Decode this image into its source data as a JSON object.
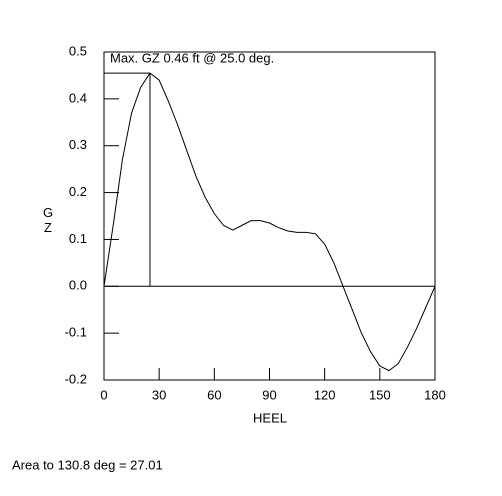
{
  "chart_data": {
    "type": "line",
    "annotation": "Max. GZ 0.46 ft @ 25.0 deg.",
    "footer": "Area to 130.8 deg = 27.01",
    "x_label": "HEEL",
    "y_label": "GZ",
    "x": [
      0,
      5,
      10,
      15,
      20,
      25,
      30,
      35,
      40,
      45,
      50,
      55,
      60,
      65,
      70,
      75,
      80,
      85,
      90,
      95,
      100,
      105,
      110,
      115,
      120,
      125,
      130,
      135,
      140,
      145,
      150,
      155,
      160,
      165,
      170,
      175,
      180
    ],
    "series": [
      {
        "color": "#000000",
        "values": [
          0,
          0.13,
          0.27,
          0.37,
          0.425,
          0.455,
          0.44,
          0.395,
          0.345,
          0.29,
          0.235,
          0.19,
          0.155,
          0.13,
          0.12,
          0.13,
          0.14,
          0.14,
          0.135,
          0.125,
          0.118,
          0.115,
          0.115,
          0.112,
          0.09,
          0.05,
          0.0,
          -0.05,
          -0.1,
          -0.14,
          -0.17,
          -0.18,
          -0.165,
          -0.13,
          -0.09,
          -0.045,
          0
        ]
      }
    ],
    "max_marker": {
      "x": 25,
      "y": 0.455
    },
    "xlim": [
      0,
      180
    ],
    "xticks": [
      0,
      30,
      60,
      90,
      120,
      150,
      180
    ],
    "ylim": [
      -0.2,
      0.5
    ],
    "yticks": [
      {
        "value": 0.5,
        "label": "0.5"
      },
      {
        "value": 0.4,
        "label": "0.4"
      },
      {
        "value": 0.3,
        "label": "0.3"
      },
      {
        "value": 0.2,
        "label": "0.2"
      },
      {
        "value": 0.1,
        "label": "0.1"
      },
      {
        "value": 0,
        "label": "0.0"
      },
      {
        "value": -0.1,
        "label": "-0.1"
      },
      {
        "value": -0.2,
        "label": "-0.2"
      }
    ]
  }
}
